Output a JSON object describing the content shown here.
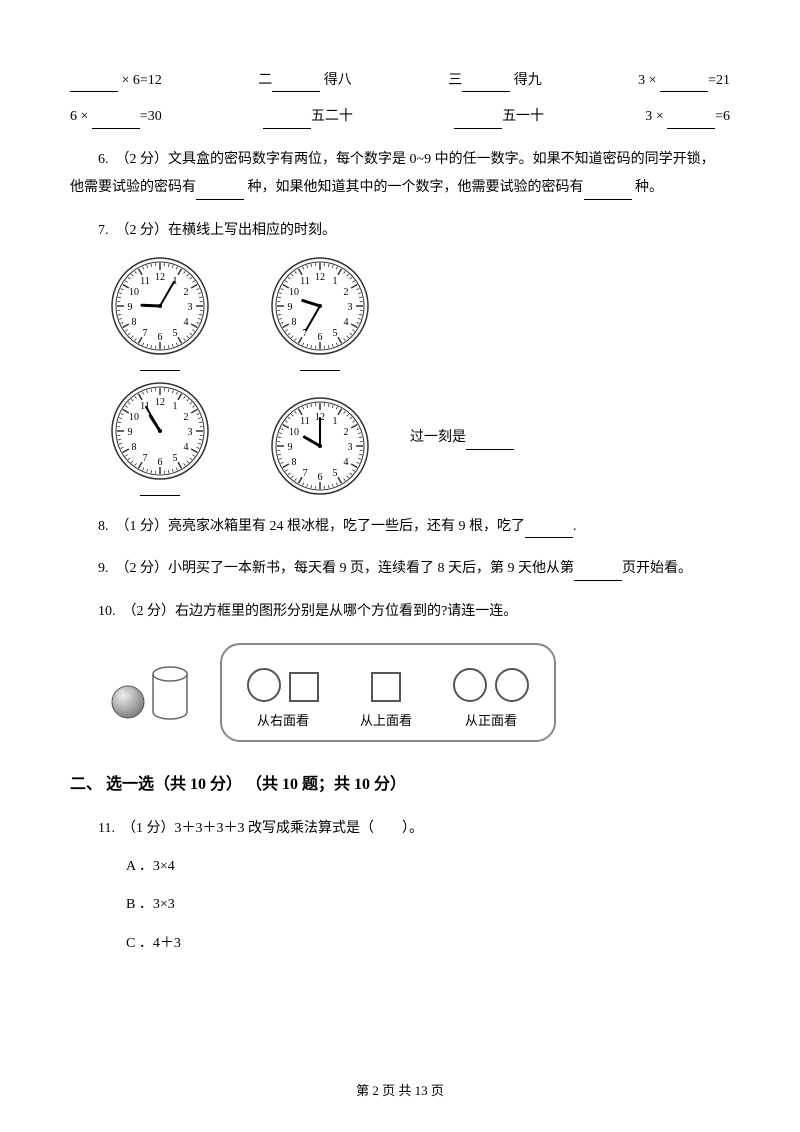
{
  "row1": {
    "c1a": "× 6=12",
    "c2a": "二",
    "c2b": "得八",
    "c3a": "三",
    "c3b": "得九",
    "c4a": "3 ×",
    "c4b": "=21"
  },
  "row2": {
    "c1a": "6 ×",
    "c1b": "=30",
    "c2b": "五二十",
    "c3b": "五一十",
    "c4a": "3 ×",
    "c4b": "=6"
  },
  "q6": {
    "prefix": "6.　（2 分）文具盒的密码数字有两位，每个数字是 0~9 中的任一数字。如果不知道密码的同学开锁，",
    "line2a": "他需要试验的密码有",
    "line2b": "种，如果他知道其中的一个数字，他需要试验的密码有",
    "line2c": "种。"
  },
  "q7": {
    "text": "7.　（2 分）在横线上写出相应的时刻。",
    "afterlabel_a": "过一刻是"
  },
  "clocks": {
    "r1c1": {
      "h": 9,
      "m": 5
    },
    "r1c2": {
      "h": 9,
      "m": 35
    },
    "r2c1": {
      "h": 10,
      "m": 55
    },
    "r2c2": {
      "h": 10,
      "m": 0
    }
  },
  "q8": {
    "a": "8.　（1 分）亮亮家冰箱里有 24 根冰棍，吃了一些后，还有 9 根，吃了",
    "b": "."
  },
  "q9": {
    "a": "9.　（2 分）小明买了一本新书，每天看 9 页，连续看了 8 天后，第 9 天他从第",
    "b": "页开始看。"
  },
  "q10": {
    "text": "10.　（2 分）右边方框里的图形分别是从哪个方位看到的?请连一连。",
    "labels": {
      "right": "从右面看",
      "top": "从上面看",
      "front": "从正面看"
    }
  },
  "section2": "二、 选一选（共 10 分） （共 10 题；共 10 分）",
  "q11": {
    "text": "11.　（1 分）3＋3＋3＋3 改写成乘法算式是（　　）。",
    "optA": "A ．3×4",
    "optB": "B ．3×3",
    "optC": "C ．4＋3"
  },
  "footer": "第 2 页 共 13 页",
  "style": {
    "clock_face_stroke": "#333",
    "clock_radius": 48,
    "clock_inner_radius": 42,
    "ball_fill": "#b8b8b8",
    "cyl_stroke": "#888"
  }
}
